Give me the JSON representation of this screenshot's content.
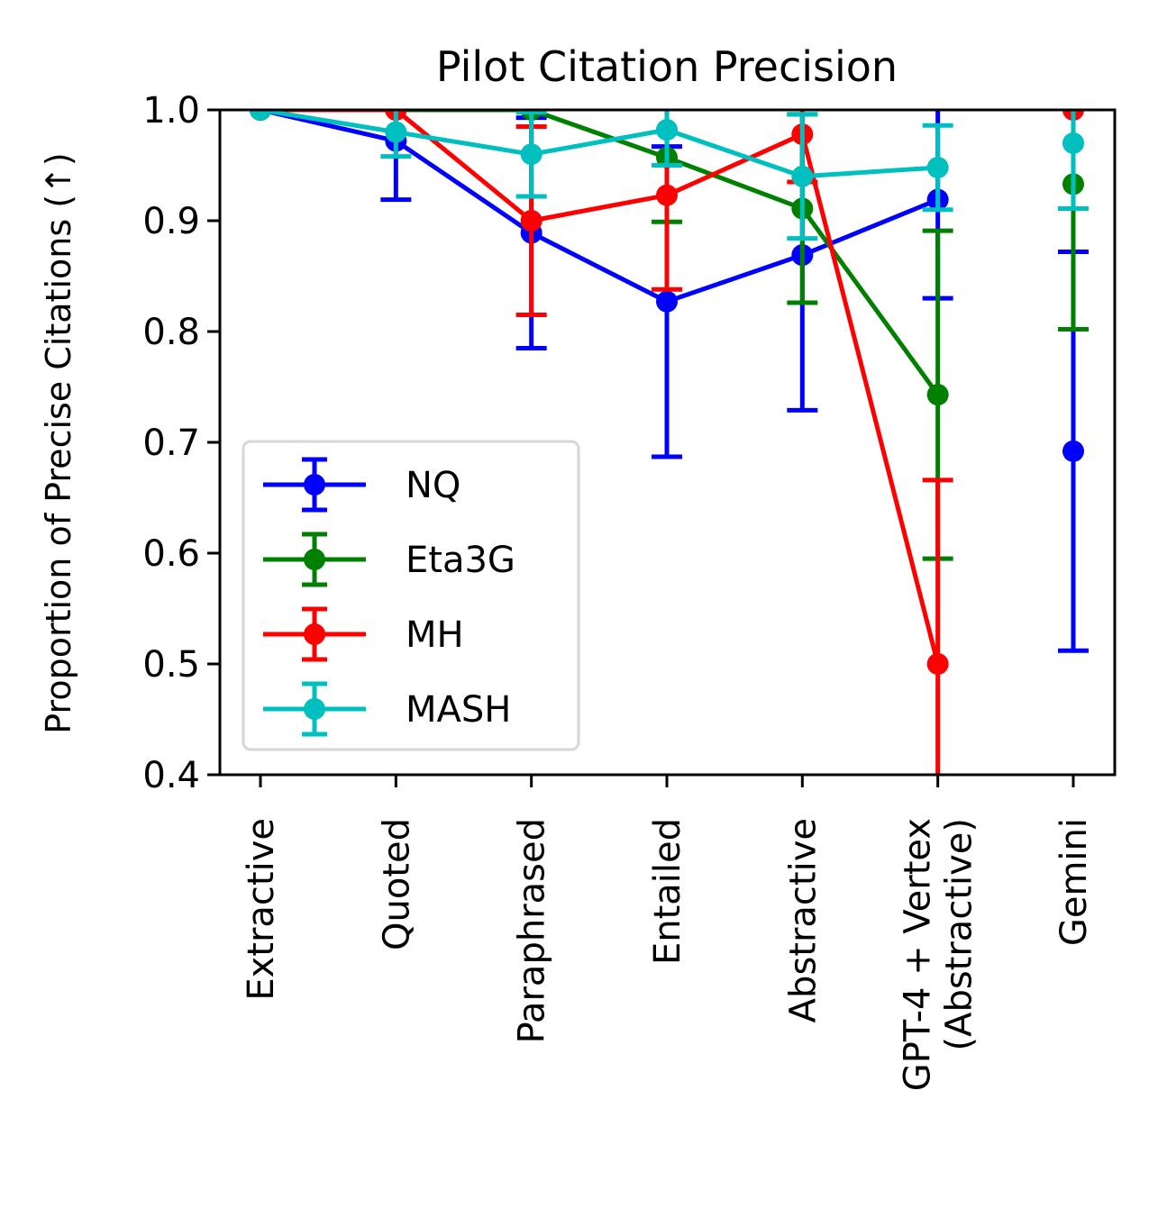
{
  "chart_data": {
    "type": "line",
    "title": "Pilot Citation Precision",
    "xlabel": "",
    "ylabel": "Proportion of Precise Citations (↑)",
    "categories": [
      "Extractive",
      "Quoted",
      "Paraphrased",
      "Entailed",
      "Abstractive",
      "GPT-4 + Vertex\n(Abstractive)",
      "Gemini"
    ],
    "ylim": [
      0.4,
      1.0
    ],
    "yticks": [
      "0.4",
      "0.5",
      "0.6",
      "0.7",
      "0.8",
      "0.9",
      "1.0"
    ],
    "grid": false,
    "legend_position": "lower-left",
    "series": [
      {
        "name": "NQ",
        "color": "#0000ff",
        "values": [
          1.0,
          0.972,
          0.889,
          0.827,
          0.869,
          0.919,
          0.692
        ],
        "errors": [
          0.0,
          0.053,
          0.104,
          0.14,
          0.14,
          0.089,
          0.18
        ],
        "connect": [
          true,
          true,
          true,
          true,
          true,
          true,
          false
        ]
      },
      {
        "name": "Eta3G",
        "color": "#008000",
        "values": [
          1.0,
          1.0,
          1.0,
          0.957,
          0.911,
          0.743,
          0.933
        ],
        "errors": [
          0.0,
          0.0,
          0.0,
          0.058,
          0.085,
          0.148,
          0.131
        ],
        "connect": [
          true,
          true,
          true,
          true,
          true,
          true,
          false
        ]
      },
      {
        "name": "MH",
        "color": "#ff0000",
        "values": [
          1.0,
          1.0,
          0.9,
          0.923,
          0.978,
          0.5,
          1.0
        ],
        "errors": [
          0.0,
          0.0,
          0.085,
          0.085,
          0.043,
          0.166,
          0.0
        ],
        "connect": [
          true,
          true,
          true,
          true,
          true,
          true,
          false
        ]
      },
      {
        "name": "MASH",
        "color": "#00bfbf",
        "values": [
          1.0,
          0.98,
          0.96,
          0.982,
          0.94,
          0.948,
          0.97
        ],
        "errors": [
          0.0,
          0.022,
          0.038,
          0.032,
          0.056,
          0.038,
          0.059
        ],
        "connect": [
          true,
          true,
          true,
          true,
          true,
          true,
          false
        ]
      }
    ]
  }
}
